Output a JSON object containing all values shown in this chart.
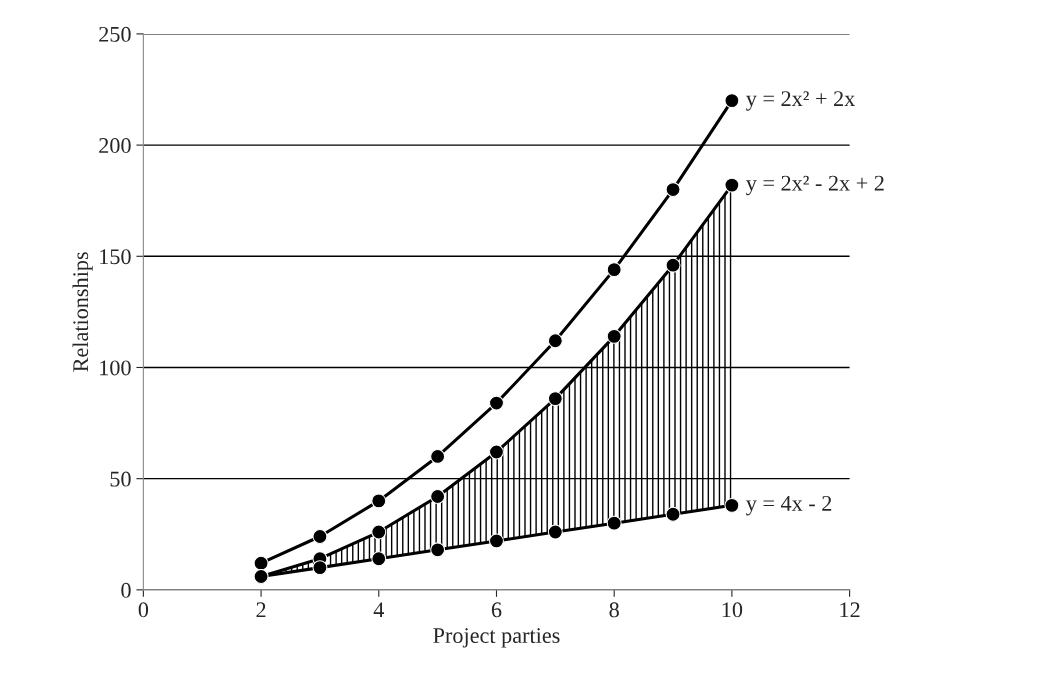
{
  "chart_data": {
    "type": "line",
    "xlabel": "Project parties",
    "ylabel": "Relationships",
    "x": [
      2,
      3,
      4,
      5,
      6,
      7,
      8,
      9,
      10
    ],
    "series": [
      {
        "name": "y = 2x² + 2x",
        "color": "#000000",
        "values": [
          12,
          24,
          40,
          60,
          84,
          112,
          144,
          180,
          220
        ]
      },
      {
        "name": "y = 2x² - 2x + 2",
        "color": "#000000",
        "values": [
          6,
          14,
          26,
          42,
          62,
          86,
          114,
          146,
          182
        ],
        "lower": [
          6,
          10,
          14,
          18,
          22,
          26,
          30,
          34,
          38
        ],
        "upper": [
          6,
          14,
          26,
          42,
          62,
          86,
          114,
          146,
          182
        ]
      },
      {
        "name": "y = 4x - 2",
        "color": "#000000",
        "values": [
          6,
          10,
          14,
          18,
          22,
          26,
          30,
          34,
          38
        ]
      }
    ],
    "xlim": [
      0,
      12
    ],
    "xticks": [
      0,
      2,
      4,
      6,
      8,
      10,
      12
    ],
    "ylim": [
      0,
      250
    ],
    "yticks": [
      0,
      50,
      100,
      150,
      200,
      250
    ],
    "grid": "y",
    "marker": "circle",
    "line_style": "solid"
  }
}
